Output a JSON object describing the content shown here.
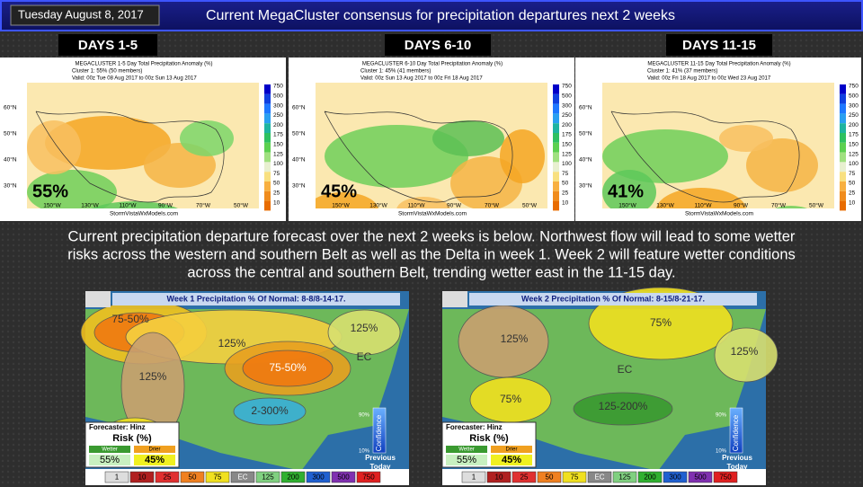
{
  "header": {
    "date": "Tuesday August 8, 2017",
    "title": "Current MegaCluster consensus for precipitation departures next 2 weeks"
  },
  "cluster_maps": {
    "colorbar": [
      "750",
      "500",
      "300",
      "250",
      "200",
      "175",
      "150",
      "125",
      "100",
      "75",
      "50",
      "25",
      "10"
    ],
    "lat": [
      "60°N",
      "50°N",
      "40°N",
      "30°N"
    ],
    "lon": [
      "150°W",
      "130°W",
      "110°W",
      "90°W",
      "70°W",
      "50°W"
    ],
    "credit": "StormVistaWxModels.com",
    "panels": [
      {
        "label": "DAYS 1-5",
        "title": "MEGACLUSTER 1-5 Day Total Precipitation Anomaly (%)",
        "cluster": "Cluster 1: 55% (50 members)",
        "valid": "Valid: 00z Tue 08 Aug 2017 to 00z Sun 13 Aug 2017",
        "share": "55%"
      },
      {
        "label": "DAYS 6-10",
        "title": "MEGACLUSTER 6-10 Day Total Precipitation Anomaly (%)",
        "cluster": "Cluster 1: 45% (41 members)",
        "valid": "Valid: 00z Sun 13 Aug 2017 to 00z Fri 18 Aug 2017",
        "share": "45%"
      },
      {
        "label": "DAYS 11-15",
        "title": "MEGACLUSTER 11-15 Day Total Precipitation Anomaly (%)",
        "cluster": "Cluster 1: 41% (37 members)",
        "valid": "Valid: 00z Fri 18 Aug 2017 to 00z Wed 23 Aug 2017",
        "share": "41%"
      }
    ]
  },
  "summary": [
    "Current precipitation departure forecast over the next 2 weeks is below. Northwest flow will lead to some wetter",
    "risks across the western and southern Belt as well as the Delta in week 1. Week 2 will feature wetter conditions",
    "across the central and southern Belt, trending wetter east in the 11-15 day."
  ],
  "outlooks": {
    "scale": [
      "1",
      "10",
      "25",
      "50",
      "75",
      "EC",
      "125",
      "200",
      "300",
      "500",
      "750"
    ],
    "forecaster": "Forecaster: Hinz",
    "risk": "Risk (%)",
    "wetter": "Wetter",
    "drier": "Drier",
    "confidence": "Confidence",
    "conf_high": "90%",
    "conf_low": "10%",
    "previous": "Previous",
    "today": "Today",
    "maps": [
      {
        "title": "Week 1 Precipitation % Of Normal: 8-8/8-14-17.",
        "wetter_risk": "55%",
        "drier_risk": "45%",
        "labels": [
          "75-50%",
          "125%",
          "125%",
          "125%",
          "75-50%",
          "2-300%",
          "EC"
        ]
      },
      {
        "title": "Week 2 Precipitation % Of Normal: 8-15/8-21-17.",
        "wetter_risk": "55%",
        "drier_risk": "45%",
        "labels": [
          "125%",
          "75%",
          "125%",
          "EC",
          "75%",
          "125-200%"
        ]
      }
    ]
  }
}
